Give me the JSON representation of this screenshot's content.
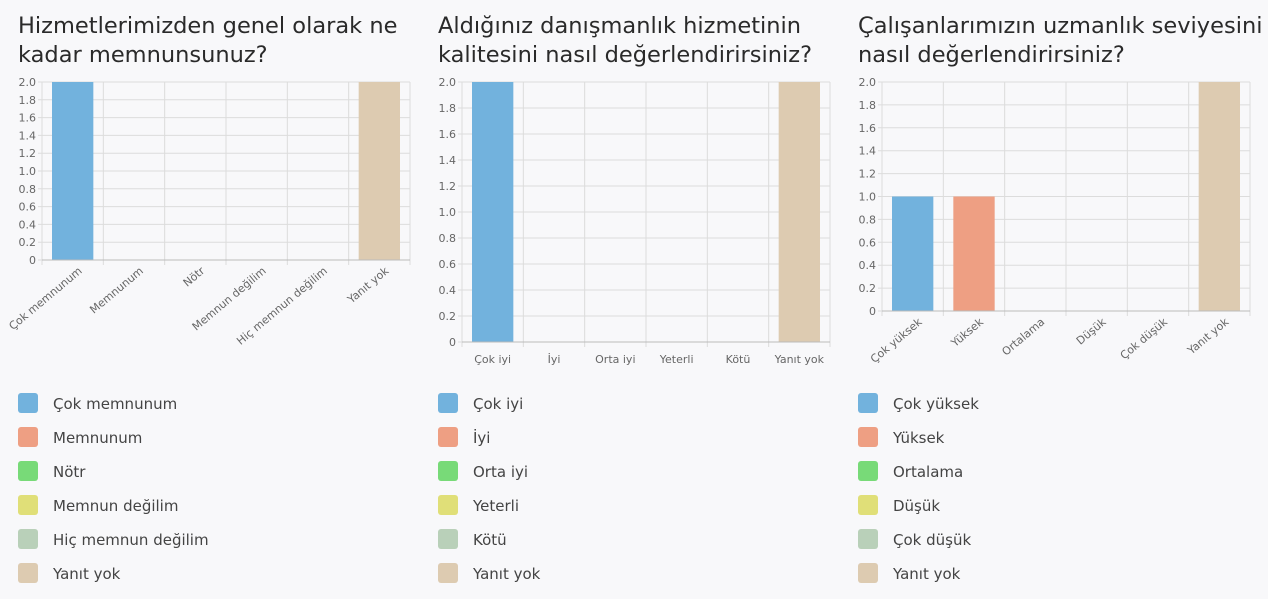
{
  "colors": [
    "#72b2dd",
    "#ee9f83",
    "#78da78",
    "#e0df78",
    "#b9d0b9",
    "#ddcbb1"
  ],
  "panels": [
    {
      "title": "Hizmetlerimizden genel olarak ne kadar memnunsunuz?",
      "chart_data": {
        "type": "bar",
        "categories": [
          "Çok memnunum",
          "Memnunum",
          "Nötr",
          "Memnun değilim",
          "Hiç memnun değilim",
          "Yanıt yok"
        ],
        "values": [
          2,
          0,
          0,
          0,
          0,
          2
        ],
        "ylim": [
          0,
          2
        ],
        "yticks": [
          "0",
          "0.2",
          "0.4",
          "0.6",
          "0.8",
          "1.0",
          "1.2",
          "1.4",
          "1.6",
          "1.8",
          "2.0"
        ],
        "x_labels_rotated": true,
        "grid": true
      },
      "legend": [
        "Çok memnunum",
        "Memnunum",
        "Nötr",
        "Memnun değilim",
        "Hiç memnun değilim",
        "Yanıt yok"
      ]
    },
    {
      "title": "Aldığınız danışmanlık hizmetinin kalitesini nasıl değerlendirirsiniz?",
      "chart_data": {
        "type": "bar",
        "categories": [
          "Çok iyi",
          "İyi",
          "Orta iyi",
          "Yeterli",
          "Kötü",
          "Yanıt yok"
        ],
        "values": [
          2,
          0,
          0,
          0,
          0,
          2
        ],
        "ylim": [
          0,
          2
        ],
        "yticks": [
          "0",
          "0.2",
          "0.4",
          "0.6",
          "0.8",
          "1.0",
          "1.2",
          "1.4",
          "1.6",
          "1.8",
          "2.0"
        ],
        "x_labels_rotated": false,
        "grid": true
      },
      "legend": [
        "Çok iyi",
        "İyi",
        "Orta iyi",
        "Yeterli",
        "Kötü",
        "Yanıt yok"
      ]
    },
    {
      "title": "Çalışanlarımızın uzmanlık seviyesini nasıl değerlendirirsiniz?",
      "chart_data": {
        "type": "bar",
        "categories": [
          "Çok yüksek",
          "Yüksek",
          "Ortalama",
          "Düşük",
          "Çok düşük",
          "Yanıt yok"
        ],
        "values": [
          1,
          1,
          0,
          0,
          0,
          2
        ],
        "ylim": [
          0,
          2
        ],
        "yticks": [
          "0",
          "0.2",
          "0.4",
          "0.6",
          "0.8",
          "1.0",
          "1.2",
          "1.4",
          "1.6",
          "1.8",
          "2.0"
        ],
        "x_labels_rotated": true,
        "grid": true
      },
      "legend": [
        "Çok yüksek",
        "Yüksek",
        "Ortalama",
        "Düşük",
        "Çok düşük",
        "Yanıt yok"
      ]
    }
  ]
}
